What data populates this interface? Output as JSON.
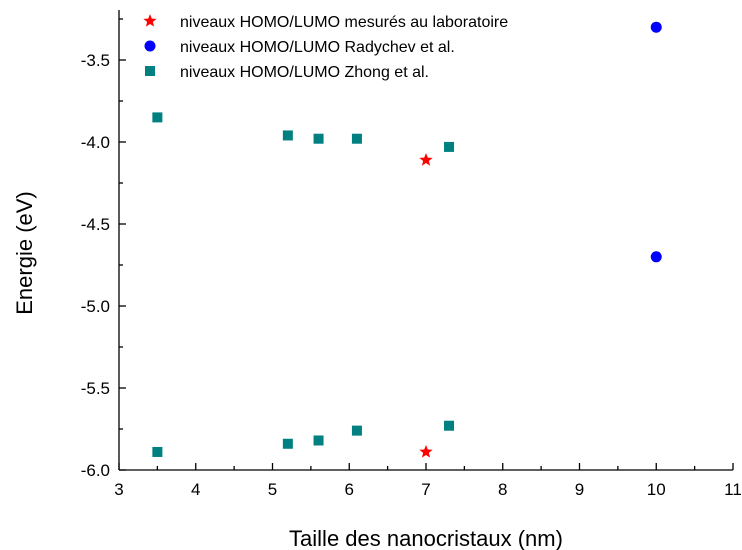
{
  "chart_data": {
    "type": "scatter",
    "xlabel": "Taille des nanocristaux (nm)",
    "ylabel": "Energie (eV)",
    "xlim": [
      3,
      11
    ],
    "ylim": [
      -6.0,
      -3.3
    ],
    "x_ticks": [
      3,
      4,
      5,
      6,
      7,
      8,
      9,
      10,
      11
    ],
    "x_tick_labels": [
      "3",
      "4",
      "5",
      "6",
      "7",
      "8",
      "9",
      "10",
      "11"
    ],
    "y_ticks": [
      -6.0,
      -5.5,
      -5.0,
      -4.5,
      -4.0,
      -3.5
    ],
    "y_tick_labels": [
      "-6.0",
      "-5.5",
      "-5.0",
      "-4.5",
      "-4.0",
      "-3.5"
    ],
    "grid": false,
    "legend_position": "top-left",
    "series": [
      {
        "name": "niveaux HOMO/LUMO mesurés au laboratoire",
        "marker": "star",
        "color": "#ff0000",
        "points": [
          {
            "x": 7.0,
            "y": -4.11
          },
          {
            "x": 7.0,
            "y": -5.89
          }
        ]
      },
      {
        "name": "niveaux HOMO/LUMO Radychev et al.",
        "marker": "circle",
        "color": "#0000ff",
        "points": [
          {
            "x": 10.0,
            "y": -3.3
          },
          {
            "x": 10.0,
            "y": -4.7
          }
        ]
      },
      {
        "name": "niveaux HOMO/LUMO Zhong et al.",
        "marker": "square",
        "color": "#008080",
        "points": [
          {
            "x": 3.5,
            "y": -3.85
          },
          {
            "x": 5.2,
            "y": -3.96
          },
          {
            "x": 5.6,
            "y": -3.98
          },
          {
            "x": 6.1,
            "y": -3.98
          },
          {
            "x": 7.3,
            "y": -4.03
          },
          {
            "x": 3.5,
            "y": -5.89
          },
          {
            "x": 5.2,
            "y": -5.84
          },
          {
            "x": 5.6,
            "y": -5.82
          },
          {
            "x": 6.1,
            "y": -5.76
          },
          {
            "x": 7.3,
            "y": -5.73
          }
        ]
      }
    ]
  }
}
